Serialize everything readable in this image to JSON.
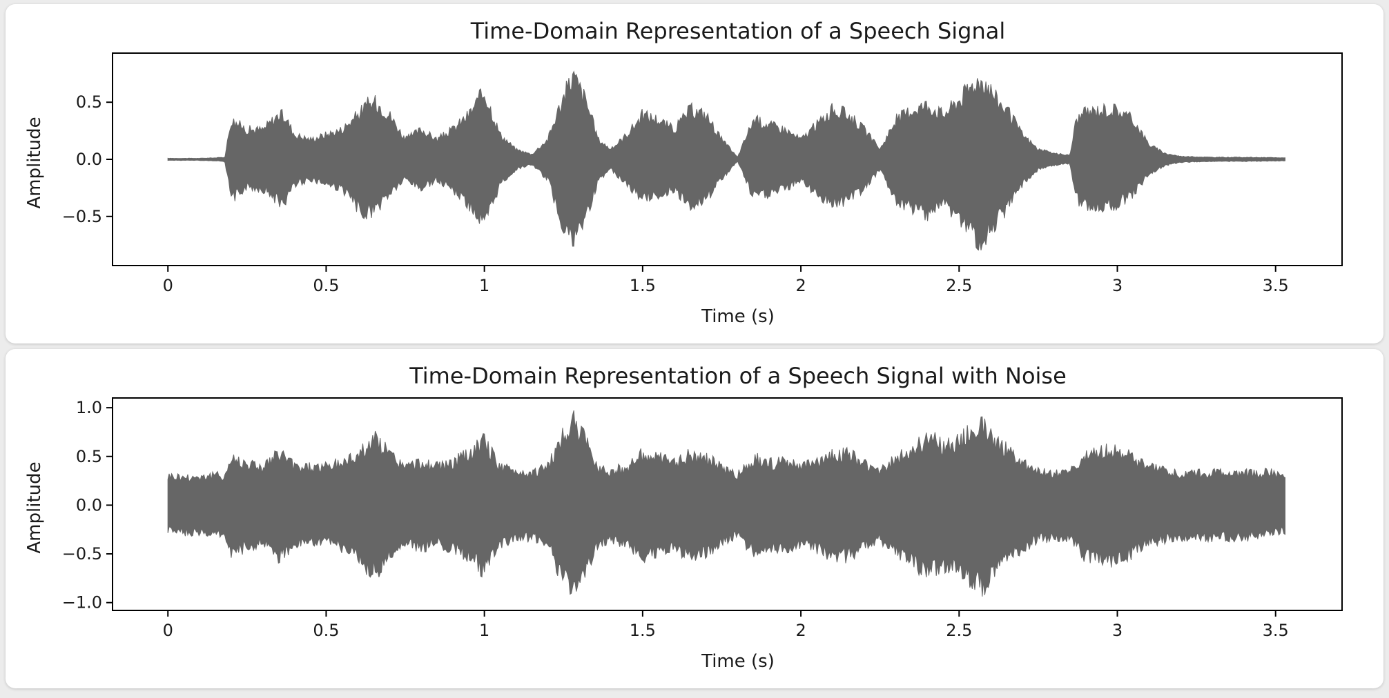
{
  "chart_data": [
    {
      "type": "line",
      "title": "Time-Domain Representation of a Speech Signal",
      "xlabel": "Time (s)",
      "ylabel": "Amplitude",
      "xlim": [
        -0.175,
        3.71
      ],
      "ylim": [
        -0.93,
        0.93
      ],
      "xticks": [
        0,
        0.5,
        1,
        1.5,
        2,
        2.5,
        3,
        3.5
      ],
      "xtick_labels": [
        "0",
        "0.5",
        "1",
        "1.5",
        "2",
        "2.5",
        "3",
        "3.5"
      ],
      "yticks": [
        0.5,
        0.0,
        -0.5
      ],
      "ytick_labels": [
        "0.5",
        "0.0",
        "−0.5"
      ],
      "grid": false,
      "color": "#666666",
      "series": [
        {
          "x": [
            0.0,
            0.05,
            0.1,
            0.15,
            0.18,
            0.2,
            0.25,
            0.3,
            0.35,
            0.37,
            0.4,
            0.45,
            0.5,
            0.55,
            0.6,
            0.63,
            0.66,
            0.7,
            0.75,
            0.8,
            0.85,
            0.9,
            0.95,
            1.0,
            1.05,
            1.1,
            1.15,
            1.2,
            1.24,
            1.28,
            1.32,
            1.36,
            1.4,
            1.45,
            1.5,
            1.55,
            1.6,
            1.65,
            1.7,
            1.75,
            1.8,
            1.85,
            1.9,
            1.95,
            2.0,
            2.05,
            2.1,
            2.15,
            2.2,
            2.25,
            2.3,
            2.35,
            2.4,
            2.45,
            2.5,
            2.55,
            2.58,
            2.62,
            2.65,
            2.7,
            2.75,
            2.8,
            2.85,
            2.87,
            2.9,
            2.95,
            3.0,
            3.05,
            3.1,
            3.15,
            3.2,
            3.3,
            3.4,
            3.53
          ],
          "upper": [
            0.01,
            0.01,
            0.01,
            0.015,
            0.02,
            0.4,
            0.3,
            0.3,
            0.45,
            0.43,
            0.25,
            0.2,
            0.25,
            0.3,
            0.45,
            0.55,
            0.57,
            0.45,
            0.2,
            0.3,
            0.2,
            0.3,
            0.45,
            0.68,
            0.25,
            0.1,
            0.05,
            0.2,
            0.55,
            0.85,
            0.6,
            0.2,
            0.1,
            0.25,
            0.45,
            0.4,
            0.3,
            0.5,
            0.45,
            0.2,
            0.02,
            0.4,
            0.35,
            0.3,
            0.2,
            0.35,
            0.5,
            0.45,
            0.3,
            0.1,
            0.4,
            0.5,
            0.55,
            0.45,
            0.6,
            0.78,
            0.8,
            0.6,
            0.5,
            0.25,
            0.1,
            0.06,
            0.04,
            0.4,
            0.47,
            0.5,
            0.5,
            0.4,
            0.15,
            0.06,
            0.03,
            0.02,
            0.02,
            0.015
          ],
          "lower": [
            -0.01,
            -0.01,
            -0.01,
            -0.015,
            -0.02,
            -0.4,
            -0.28,
            -0.3,
            -0.42,
            -0.43,
            -0.25,
            -0.2,
            -0.25,
            -0.3,
            -0.48,
            -0.55,
            -0.5,
            -0.35,
            -0.2,
            -0.3,
            -0.2,
            -0.3,
            -0.45,
            -0.68,
            -0.25,
            -0.1,
            -0.05,
            -0.2,
            -0.6,
            -0.85,
            -0.6,
            -0.2,
            -0.1,
            -0.25,
            -0.4,
            -0.35,
            -0.3,
            -0.45,
            -0.4,
            -0.2,
            -0.02,
            -0.38,
            -0.35,
            -0.3,
            -0.2,
            -0.35,
            -0.45,
            -0.4,
            -0.3,
            -0.1,
            -0.4,
            -0.5,
            -0.55,
            -0.45,
            -0.6,
            -0.8,
            -0.8,
            -0.6,
            -0.5,
            -0.25,
            -0.1,
            -0.06,
            -0.04,
            -0.4,
            -0.45,
            -0.48,
            -0.45,
            -0.35,
            -0.15,
            -0.06,
            -0.03,
            -0.02,
            -0.02,
            -0.015
          ]
        }
      ]
    },
    {
      "type": "line",
      "title": "Time-Domain Representation of a Speech Signal with Noise",
      "xlabel": "Time (s)",
      "ylabel": "Amplitude",
      "xlim": [
        -0.175,
        3.71
      ],
      "ylim": [
        -1.08,
        1.1
      ],
      "xticks": [
        0,
        0.5,
        1,
        1.5,
        2,
        2.5,
        3,
        3.5
      ],
      "xtick_labels": [
        "0",
        "0.5",
        "1",
        "1.5",
        "2",
        "2.5",
        "3",
        "3.5"
      ],
      "yticks": [
        1.0,
        0.5,
        0.0,
        -0.5,
        -1.0
      ],
      "ytick_labels": [
        "1.0",
        "0.5",
        "0.0",
        "−0.5",
        "−1.0"
      ],
      "grid": false,
      "color": "#666666",
      "series": [
        {
          "x": [
            0.0,
            0.05,
            0.1,
            0.15,
            0.18,
            0.2,
            0.25,
            0.3,
            0.35,
            0.37,
            0.4,
            0.45,
            0.5,
            0.55,
            0.6,
            0.63,
            0.66,
            0.7,
            0.75,
            0.8,
            0.85,
            0.9,
            0.95,
            1.0,
            1.05,
            1.1,
            1.15,
            1.2,
            1.24,
            1.28,
            1.32,
            1.36,
            1.4,
            1.45,
            1.5,
            1.55,
            1.6,
            1.65,
            1.7,
            1.75,
            1.8,
            1.85,
            1.9,
            1.95,
            2.0,
            2.05,
            2.1,
            2.15,
            2.2,
            2.25,
            2.3,
            2.35,
            2.4,
            2.45,
            2.5,
            2.55,
            2.58,
            2.62,
            2.65,
            2.7,
            2.75,
            2.8,
            2.85,
            2.87,
            2.9,
            2.95,
            3.0,
            3.05,
            3.1,
            3.15,
            3.2,
            3.3,
            3.4,
            3.53
          ],
          "upper": [
            0.35,
            0.33,
            0.34,
            0.35,
            0.35,
            0.55,
            0.5,
            0.45,
            0.6,
            0.58,
            0.45,
            0.45,
            0.45,
            0.5,
            0.6,
            0.7,
            0.78,
            0.6,
            0.45,
            0.5,
            0.45,
            0.5,
            0.6,
            0.75,
            0.45,
            0.4,
            0.38,
            0.45,
            0.75,
            1.0,
            0.75,
            0.45,
            0.4,
            0.45,
            0.6,
            0.55,
            0.5,
            0.6,
            0.55,
            0.45,
            0.35,
            0.55,
            0.5,
            0.5,
            0.45,
            0.5,
            0.6,
            0.6,
            0.5,
            0.4,
            0.55,
            0.65,
            0.8,
            0.7,
            0.75,
            0.9,
            0.95,
            0.75,
            0.65,
            0.5,
            0.4,
            0.38,
            0.38,
            0.5,
            0.6,
            0.65,
            0.65,
            0.55,
            0.45,
            0.4,
            0.38,
            0.38,
            0.38,
            0.38
          ],
          "lower": [
            -0.3,
            -0.32,
            -0.33,
            -0.34,
            -0.35,
            -0.55,
            -0.5,
            -0.45,
            -0.6,
            -0.58,
            -0.45,
            -0.45,
            -0.45,
            -0.5,
            -0.6,
            -0.75,
            -0.78,
            -0.6,
            -0.45,
            -0.5,
            -0.45,
            -0.5,
            -0.6,
            -0.78,
            -0.45,
            -0.4,
            -0.38,
            -0.45,
            -0.8,
            -1.0,
            -0.8,
            -0.45,
            -0.4,
            -0.45,
            -0.6,
            -0.55,
            -0.5,
            -0.6,
            -0.55,
            -0.45,
            -0.35,
            -0.55,
            -0.5,
            -0.5,
            -0.45,
            -0.5,
            -0.6,
            -0.6,
            -0.5,
            -0.4,
            -0.55,
            -0.65,
            -0.8,
            -0.7,
            -0.75,
            -0.92,
            -0.95,
            -0.75,
            -0.65,
            -0.5,
            -0.4,
            -0.38,
            -0.38,
            -0.5,
            -0.6,
            -0.65,
            -0.65,
            -0.55,
            -0.45,
            -0.4,
            -0.38,
            -0.38,
            -0.38,
            -0.3
          ]
        }
      ]
    }
  ]
}
